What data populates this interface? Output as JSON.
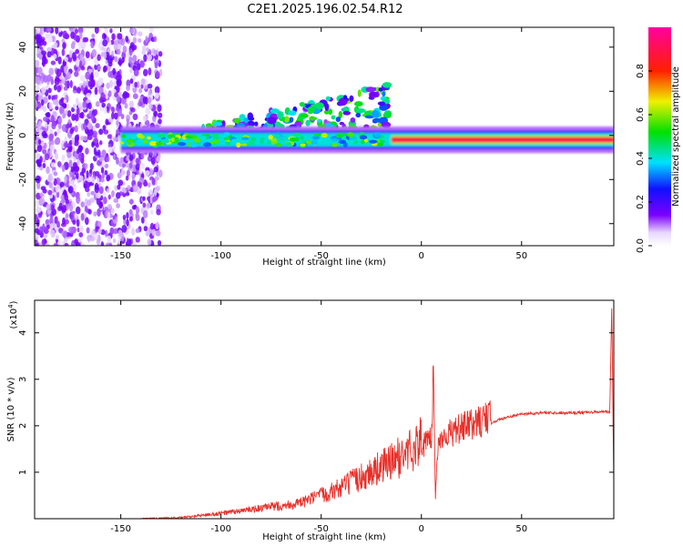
{
  "title": "C2E1.2025.196.02.54.R12",
  "colors": {
    "snr_line": "#e8302a",
    "background": "#ffffff",
    "axis": "#000000"
  },
  "chart_data": [
    {
      "type": "heatmap",
      "xlabel": "Height of straight line (km)",
      "ylabel": "Frequency (Hz)",
      "xlim": [
        -193,
        96
      ],
      "ylim": [
        -50,
        49
      ],
      "xticks": [
        -150,
        -100,
        -50,
        0,
        50
      ],
      "xtick_labels": [
        "-150",
        "-100",
        "-50",
        "0",
        "50"
      ],
      "yticks": [
        -40,
        -20,
        0,
        20,
        40
      ],
      "ytick_labels": [
        "-40",
        "-20",
        "0",
        "20",
        "40"
      ],
      "colorbar": {
        "label": "Normalized spectral amplitude",
        "range": [
          0,
          1
        ],
        "ticks": [
          0.0,
          0.2,
          0.4,
          0.6,
          0.8
        ],
        "tick_labels": [
          "0.0",
          "0.2",
          "0.4",
          "0.6",
          "0.8"
        ],
        "colormap": "rainbow (white→violet→blue→cyan→green→yellow→red→magenta)"
      },
      "features": [
        {
          "name": "noise",
          "x_range": [
            -193,
            -130
          ],
          "freq_range": [
            -50,
            49
          ],
          "amplitude": 0.1
        },
        {
          "name": "band",
          "x_start": -150,
          "x_end": 96,
          "freq_center": -2,
          "amplitude": 0.9
        },
        {
          "name": "diagonal",
          "x_start": -130,
          "x_end": -15,
          "freq_start": -2,
          "freq_end": 10,
          "amplitude": 0.5
        }
      ]
    },
    {
      "type": "line",
      "xlabel": "Height of straight line (km)",
      "ylabel": "SNR (10 * v/v)",
      "y_multiplier": "(x10^4)",
      "y_multiplier_base": "(x10",
      "y_multiplier_exp": "4",
      "y_multiplier_close": ")",
      "xlim": [
        -193,
        96
      ],
      "ylim": [
        0,
        4.7
      ],
      "xticks": [
        -150,
        -100,
        -50,
        0,
        50
      ],
      "xtick_labels": [
        "-150",
        "-100",
        "-50",
        "0",
        "50"
      ],
      "yticks": [
        1,
        2,
        3,
        4
      ],
      "ytick_labels": [
        "1",
        "2",
        "3",
        "4"
      ],
      "series": [
        {
          "x": [
            -193,
            -140,
            -120,
            -100,
            -80,
            -60,
            -50,
            -40,
            -30,
            -20,
            -10,
            -5,
            0,
            5,
            6,
            7,
            8,
            10,
            15,
            20,
            30,
            40,
            50,
            60,
            70,
            80,
            90,
            94,
            95,
            96
          ],
          "y": [
            0.0,
            0.0,
            0.02,
            0.1,
            0.2,
            0.3,
            0.45,
            0.6,
            0.8,
            1.0,
            1.2,
            1.35,
            1.5,
            1.6,
            3.15,
            0.4,
            1.4,
            1.7,
            1.75,
            1.85,
            2.0,
            2.15,
            2.25,
            2.28,
            2.28,
            2.28,
            2.3,
            2.3,
            4.6,
            0.7
          ]
        }
      ]
    }
  ]
}
